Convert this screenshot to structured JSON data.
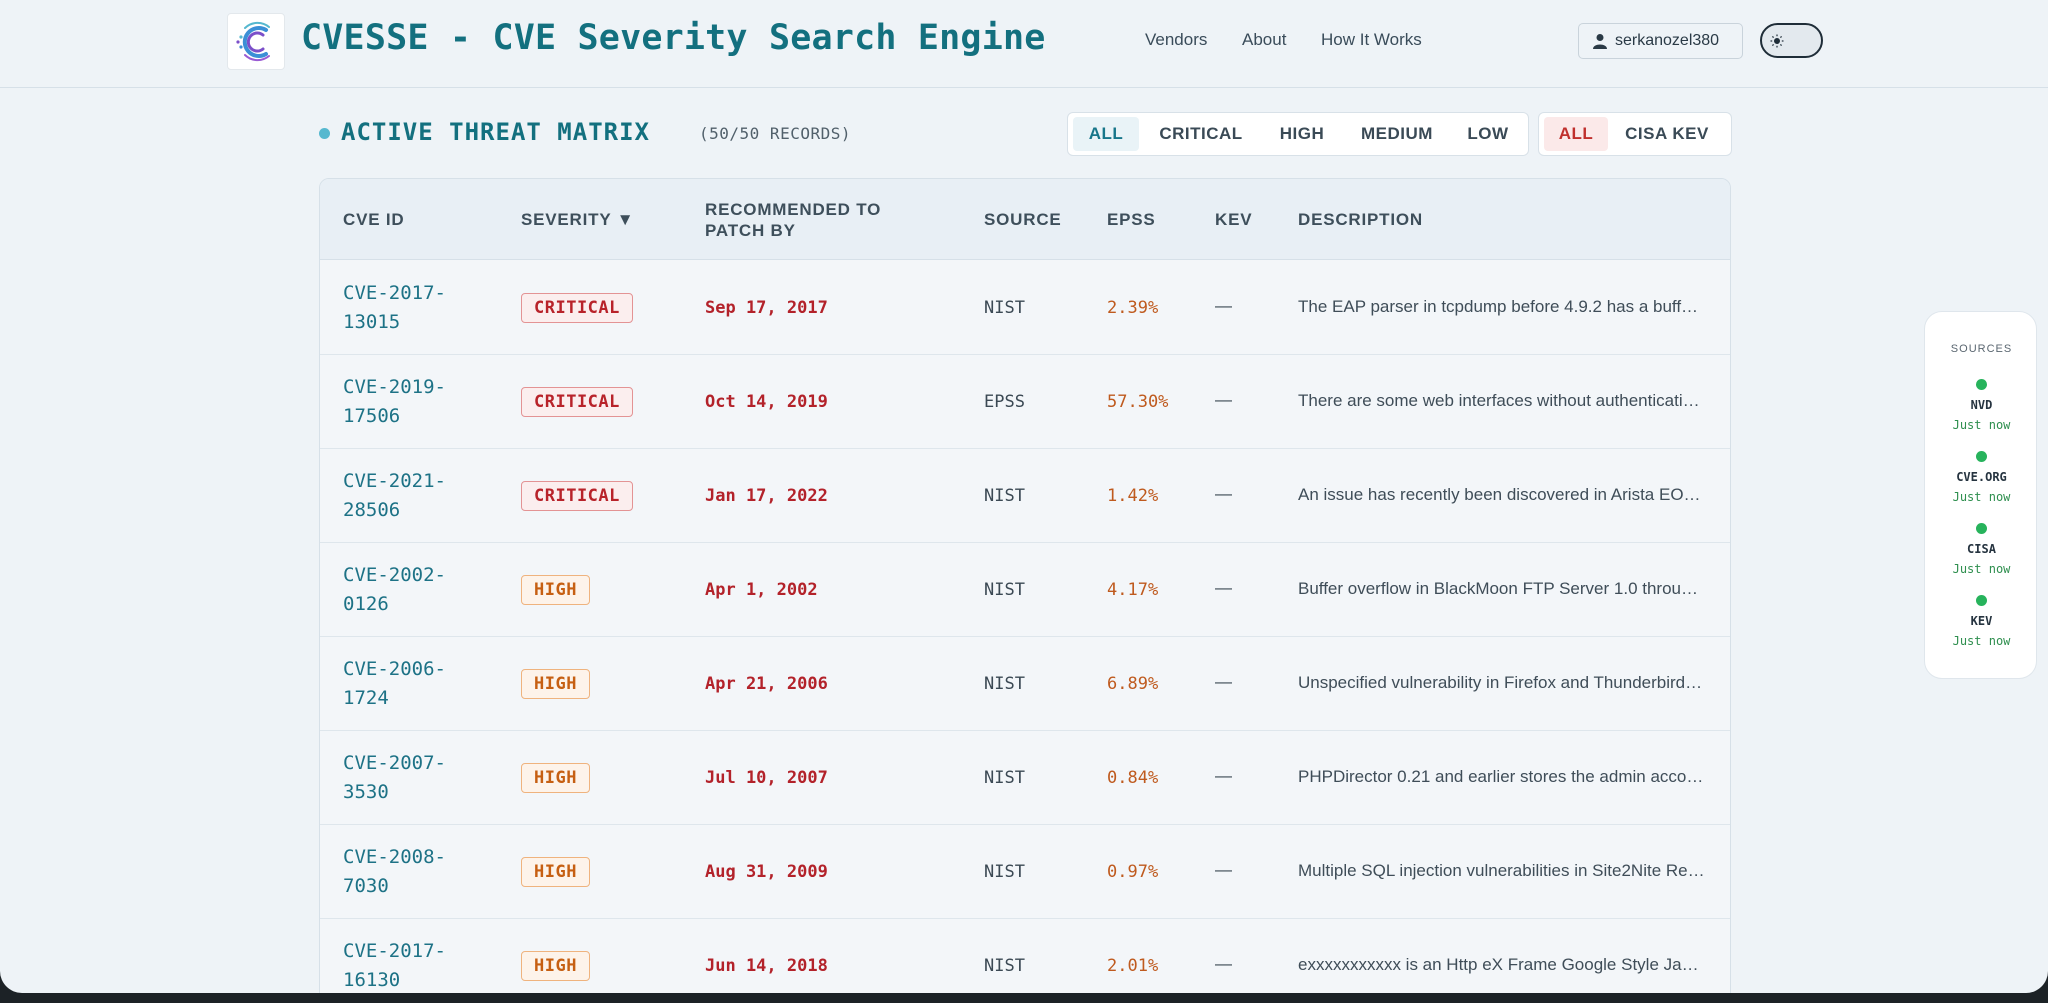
{
  "app": {
    "title": "CVESSE - CVE Severity Search Engine",
    "logo_icon": "cvesse-logo-c-icon"
  },
  "nav": {
    "vendors": "Vendors",
    "about": "About",
    "how_it_works": "How It Works"
  },
  "user": {
    "username": "serkanozel380",
    "icon": "user-icon"
  },
  "theme_toggle": {
    "icon": "sun-icon"
  },
  "section": {
    "title": "ACTIVE THREAT MATRIX",
    "records": "(50/50 RECORDS)"
  },
  "severity_filters": [
    "ALL",
    "CRITICAL",
    "HIGH",
    "MEDIUM",
    "LOW"
  ],
  "severity_active": "ALL",
  "kev_filters": [
    "ALL",
    "CISA KEV"
  ],
  "kev_active": "ALL",
  "table": {
    "headers": {
      "cve_id": "CVE ID",
      "severity": "SEVERITY ▼",
      "patch_line1": "RECOMMENDED TO",
      "patch_line2": "PATCH BY",
      "source": "SOURCE",
      "epss": "EPSS",
      "kev": "KEV",
      "description": "DESCRIPTION"
    },
    "rows": [
      {
        "cve_line1": "CVE-2017-",
        "cve_line2": "13015",
        "severity": "CRITICAL",
        "patch_by": "Sep 17, 2017",
        "source": "NIST",
        "epss": "2.39%",
        "kev": "—",
        "description": "The EAP parser in tcpdump before 4.9.2 has a buff…"
      },
      {
        "cve_line1": "CVE-2019-",
        "cve_line2": "17506",
        "severity": "CRITICAL",
        "patch_by": "Oct 14, 2019",
        "source": "EPSS",
        "epss": "57.30%",
        "kev": "—",
        "description": "There are some web interfaces without authenticati…"
      },
      {
        "cve_line1": "CVE-2021-",
        "cve_line2": "28506",
        "severity": "CRITICAL",
        "patch_by": "Jan 17, 2022",
        "source": "NIST",
        "epss": "1.42%",
        "kev": "—",
        "description": "An issue has recently been discovered in Arista EO…"
      },
      {
        "cve_line1": "CVE-2002-",
        "cve_line2": "0126",
        "severity": "HIGH",
        "patch_by": "Apr 1, 2002",
        "source": "NIST",
        "epss": "4.17%",
        "kev": "—",
        "description": "Buffer overflow in BlackMoon FTP Server 1.0 throu…"
      },
      {
        "cve_line1": "CVE-2006-",
        "cve_line2": "1724",
        "severity": "HIGH",
        "patch_by": "Apr 21, 2006",
        "source": "NIST",
        "epss": "6.89%",
        "kev": "—",
        "description": "Unspecified vulnerability in Firefox and Thunderbird…"
      },
      {
        "cve_line1": "CVE-2007-",
        "cve_line2": "3530",
        "severity": "HIGH",
        "patch_by": "Jul 10, 2007",
        "source": "NIST",
        "epss": "0.84%",
        "kev": "—",
        "description": "PHPDirector 0.21 and earlier stores the admin acco…"
      },
      {
        "cve_line1": "CVE-2008-",
        "cve_line2": "7030",
        "severity": "HIGH",
        "patch_by": "Aug 31, 2009",
        "source": "NIST",
        "epss": "0.97%",
        "kev": "—",
        "description": "Multiple SQL injection vulnerabilities in Site2Nite Re…"
      },
      {
        "cve_line1": "CVE-2017-",
        "cve_line2": "16130",
        "severity": "HIGH",
        "patch_by": "Jun 14, 2018",
        "source": "NIST",
        "epss": "2.01%",
        "kev": "—",
        "description": "exxxxxxxxxxx is an Http eX Frame Google Style Ja…"
      }
    ]
  },
  "sources_panel": {
    "title": "SOURCES",
    "items": [
      {
        "name": "NVD",
        "time": "Just now"
      },
      {
        "name": "CVE.ORG",
        "time": "Just now"
      },
      {
        "name": "CISA",
        "time": "Just now"
      },
      {
        "name": "KEV",
        "time": "Just now"
      }
    ]
  },
  "colors": {
    "accent": "#13707f",
    "critical": "#b8232a",
    "high": "#c65f12",
    "status_ok": "#27b35c"
  }
}
